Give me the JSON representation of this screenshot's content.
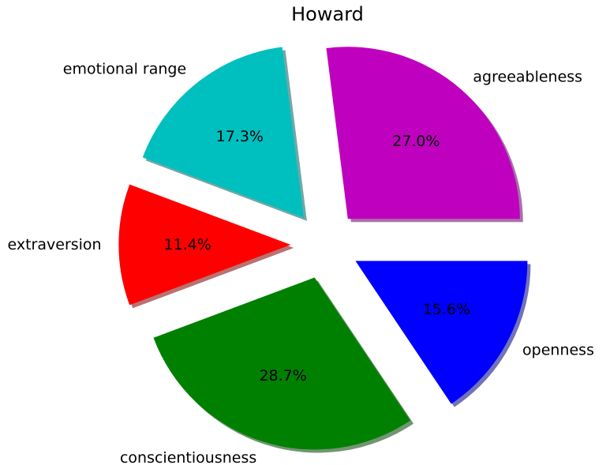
{
  "chart_data": {
    "type": "pie",
    "title": "Howard",
    "slices": [
      {
        "label": "agreeableness",
        "value": 27.0,
        "pct_text": "27.0%",
        "color": "#bf00bf"
      },
      {
        "label": "emotional range",
        "value": 17.3,
        "pct_text": "17.3%",
        "color": "#00bfbf"
      },
      {
        "label": "extraversion",
        "value": 11.4,
        "pct_text": "11.4%",
        "color": "#ff0000"
      },
      {
        "label": "conscientiousness",
        "value": 28.7,
        "pct_text": "28.7%",
        "color": "#008000"
      },
      {
        "label": "openness",
        "value": 15.6,
        "pct_text": "15.6%",
        "color": "#0000ff"
      }
    ],
    "start_angle_deg": 0,
    "direction": "counterclockwise",
    "exploded": true,
    "shadow": true
  }
}
